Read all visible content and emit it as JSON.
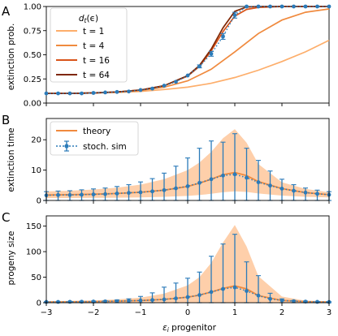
{
  "chart_data": [
    {
      "panel_letter": "A",
      "type": "line",
      "xlim": [
        -3,
        3
      ],
      "ylim": [
        0,
        1.0
      ],
      "ylabel": "extinction prob.",
      "xticks": [
        -3,
        -2,
        -1,
        0,
        1,
        2,
        3
      ],
      "yticks": [
        0.0,
        0.25,
        0.5,
        0.75,
        1.0
      ],
      "ytick_labels": [
        "0.00",
        "0.25",
        "0.50",
        "0.75",
        "1.00"
      ],
      "legend": {
        "title": "d_t(ε)",
        "placement": "upper-left"
      },
      "series": [
        {
          "name": "t = 1",
          "color": "#fdae6b",
          "x": [
            -3,
            -2.5,
            -2,
            -1.5,
            -1,
            -0.5,
            0,
            0.5,
            1,
            1.5,
            2,
            2.5,
            3
          ],
          "y": [
            0.1,
            0.1,
            0.105,
            0.11,
            0.12,
            0.14,
            0.165,
            0.205,
            0.265,
            0.34,
            0.43,
            0.53,
            0.65
          ]
        },
        {
          "name": "t = 4",
          "color": "#f08a3e",
          "x": [
            -3,
            -2.5,
            -2,
            -1.5,
            -1,
            -0.5,
            0,
            0.5,
            1,
            1.5,
            2,
            2.5,
            3
          ],
          "y": [
            0.1,
            0.1,
            0.105,
            0.115,
            0.13,
            0.165,
            0.23,
            0.35,
            0.53,
            0.72,
            0.86,
            0.94,
            0.975
          ]
        },
        {
          "name": "t = 16",
          "color": "#d9541a",
          "x": [
            -3,
            -2.5,
            -2,
            -1.5,
            -1,
            -0.5,
            0,
            0.25,
            0.5,
            0.75,
            1,
            1.25,
            1.5,
            2,
            2.5,
            3
          ],
          "y": [
            0.1,
            0.1,
            0.105,
            0.115,
            0.135,
            0.18,
            0.28,
            0.38,
            0.54,
            0.74,
            0.9,
            0.97,
            0.99,
            1.0,
            1.0,
            1.0
          ]
        },
        {
          "name": "t = 64",
          "color": "#7f2704",
          "x": [
            -3,
            -2.5,
            -2,
            -1.5,
            -1,
            -0.5,
            0,
            0.25,
            0.5,
            0.75,
            1,
            1.25,
            1.5,
            2,
            2.5,
            3
          ],
          "y": [
            0.1,
            0.1,
            0.105,
            0.115,
            0.135,
            0.18,
            0.285,
            0.39,
            0.56,
            0.78,
            0.95,
            0.995,
            1.0,
            1.0,
            1.0,
            1.0
          ]
        }
      ],
      "sim": {
        "color": "#2b7bb9",
        "x": [
          -3,
          -2.75,
          -2.5,
          -2.25,
          -2,
          -1.75,
          -1.5,
          -1.25,
          -1,
          -0.75,
          -0.5,
          -0.25,
          0,
          0.25,
          0.5,
          0.75,
          1,
          1.25,
          1.5,
          1.75,
          2,
          2.25,
          2.5,
          2.75,
          3
        ],
        "y": [
          0.1,
          0.1,
          0.1,
          0.1,
          0.105,
          0.11,
          0.115,
          0.12,
          0.135,
          0.15,
          0.18,
          0.22,
          0.285,
          0.38,
          0.51,
          0.69,
          0.91,
          1.0,
          1.0,
          1.0,
          1.0,
          1.0,
          1.0,
          1.0,
          1.0
        ],
        "err": [
          0,
          0,
          0,
          0,
          0,
          0,
          0,
          0,
          0,
          0,
          0,
          0,
          0,
          0.015,
          0.025,
          0.03,
          0.03,
          0,
          0,
          0,
          0,
          0,
          0,
          0,
          0
        ]
      }
    },
    {
      "panel_letter": "B",
      "type": "line",
      "xlim": [
        -3,
        3
      ],
      "ylim": [
        0,
        27
      ],
      "ylabel": "extinction time",
      "xticks": [
        -3,
        -2,
        -1,
        0,
        1,
        2,
        3
      ],
      "yticks": [
        0,
        10,
        20
      ],
      "legend": {
        "placement": "upper-left",
        "entries": [
          "theory",
          "stoch. sim"
        ]
      },
      "theory": {
        "color": "#f08a3e",
        "x": [
          -3,
          -2.5,
          -2,
          -1.5,
          -1,
          -0.5,
          0,
          0.25,
          0.5,
          0.75,
          1,
          1.25,
          1.5,
          2,
          2.5,
          3
        ],
        "y": [
          1.8,
          1.9,
          2.05,
          2.3,
          2.7,
          3.4,
          4.6,
          5.7,
          7.0,
          8.5,
          9.2,
          8.2,
          6.2,
          3.9,
          2.6,
          1.9
        ],
        "band_upper": [
          3.0,
          3.2,
          3.6,
          4.2,
          5.2,
          7.0,
          10.0,
          12.5,
          16.0,
          20.5,
          23.5,
          19.0,
          12.0,
          6.0,
          3.8,
          2.7
        ],
        "band_lower": [
          0.8,
          0.8,
          0.85,
          0.9,
          1.0,
          1.2,
          1.5,
          1.8,
          2.2,
          2.7,
          3.0,
          2.8,
          2.3,
          1.6,
          1.2,
          1.0
        ]
      },
      "sim": {
        "color": "#2b7bb9",
        "x": [
          -3,
          -2.75,
          -2.5,
          -2.25,
          -2,
          -1.75,
          -1.5,
          -1.25,
          -1,
          -0.75,
          -0.5,
          -0.25,
          0,
          0.25,
          0.5,
          0.75,
          1,
          1.25,
          1.5,
          1.75,
          2,
          2.25,
          2.5,
          2.75,
          3
        ],
        "y": [
          1.7,
          1.8,
          1.8,
          1.9,
          2.0,
          2.1,
          2.3,
          2.5,
          2.7,
          3.0,
          3.4,
          4.0,
          4.7,
          5.8,
          7.0,
          8.2,
          8.6,
          7.5,
          6.0,
          4.9,
          3.9,
          3.2,
          2.6,
          2.2,
          1.9
        ],
        "err_upper": [
          1.2,
          1.3,
          1.4,
          1.6,
          1.8,
          2.0,
          2.3,
          2.7,
          3.4,
          4.2,
          5.6,
          7.3,
          9.3,
          11.4,
          12.6,
          11.0,
          13.4,
          9.7,
          7.2,
          4.8,
          3.1,
          2.0,
          1.5,
          1.2,
          1.0
        ],
        "err_lower": [
          1.7,
          1.8,
          1.8,
          1.9,
          2.0,
          2.1,
          2.3,
          2.5,
          2.7,
          3.0,
          3.4,
          4.0,
          4.7,
          5.8,
          7.0,
          8.2,
          8.6,
          7.5,
          6.0,
          4.9,
          3.9,
          3.2,
          2.6,
          2.2,
          1.9
        ]
      }
    },
    {
      "panel_letter": "C",
      "type": "line",
      "xlim": [
        -3,
        3
      ],
      "ylim": [
        0,
        170
      ],
      "ylabel": "progeny size",
      "xlabel": "ε_i progenitor",
      "xticks": [
        -3,
        -2,
        -1,
        0,
        1,
        2,
        3
      ],
      "yticks": [
        0,
        50,
        100,
        150
      ],
      "theory": {
        "color": "#f08a3e",
        "x": [
          -3,
          -2.5,
          -2,
          -1.5,
          -1,
          -0.5,
          0,
          0.25,
          0.5,
          0.75,
          1,
          1.25,
          1.5,
          2,
          2.5,
          3
        ],
        "y": [
          1.5,
          1.8,
          2.3,
          3.0,
          4.3,
          6.5,
          11.0,
          15.0,
          21.0,
          28.0,
          33.0,
          27.0,
          14.0,
          4.5,
          2.0,
          1.3
        ],
        "band_upper": [
          3,
          3.5,
          4.5,
          6.5,
          10,
          18,
          34,
          50,
          78,
          118,
          152,
          110,
          52,
          12,
          4,
          2.5
        ],
        "band_lower": [
          0,
          0,
          0,
          0,
          0,
          0,
          0,
          0,
          0,
          0,
          0,
          0,
          0,
          0,
          0,
          0
        ]
      },
      "sim": {
        "color": "#2b7bb9",
        "x": [
          -3,
          -2.75,
          -2.5,
          -2.25,
          -2,
          -1.75,
          -1.5,
          -1.25,
          -1,
          -0.75,
          -0.5,
          -0.25,
          0,
          0.25,
          0.5,
          0.75,
          1,
          1.25,
          1.5,
          1.75,
          2,
          2.25,
          2.5,
          2.75,
          3
        ],
        "y": [
          1.5,
          1.6,
          1.8,
          2.0,
          2.3,
          2.6,
          3.0,
          3.6,
          4.3,
          5.3,
          6.5,
          8.5,
          11.0,
          15.0,
          21.0,
          27.0,
          30.0,
          23.0,
          14.0,
          7.5,
          4.5,
          3.0,
          2.2,
          1.7,
          1.4
        ],
        "err_upper": [
          0.5,
          0.6,
          0.7,
          0.8,
          1.0,
          1.4,
          2.5,
          4.0,
          8.0,
          14.0,
          24.0,
          30.0,
          37.0,
          45.0,
          70.0,
          88.0,
          104.0,
          57.0,
          39.0,
          11.0,
          3.0,
          1.5,
          1.0,
          0.8,
          0.6
        ],
        "err_lower": [
          1.5,
          1.6,
          1.8,
          2.0,
          2.3,
          2.6,
          3.0,
          3.6,
          4.3,
          5.3,
          6.5,
          8.5,
          11.0,
          15.0,
          21.0,
          27.0,
          30.0,
          23.0,
          14.0,
          7.5,
          4.5,
          3.0,
          2.2,
          1.7,
          1.4
        ]
      }
    }
  ],
  "legend_a": {
    "title_main": "d",
    "title_sub": "t",
    "title_rest": "(ϵ)",
    "entries": [
      "t = 1",
      "t = 4",
      "t = 16",
      "t = 64"
    ]
  },
  "legend_b": {
    "entries": [
      "theory",
      "stoch. sim"
    ]
  },
  "xlabel_parts": {
    "main": "ε",
    "sub": "i",
    "rest": " progenitor"
  },
  "theme": {
    "fill_color": "#fdbf8e",
    "sim_color": "#2b7bb9",
    "theory_color": "#f08a3e"
  }
}
